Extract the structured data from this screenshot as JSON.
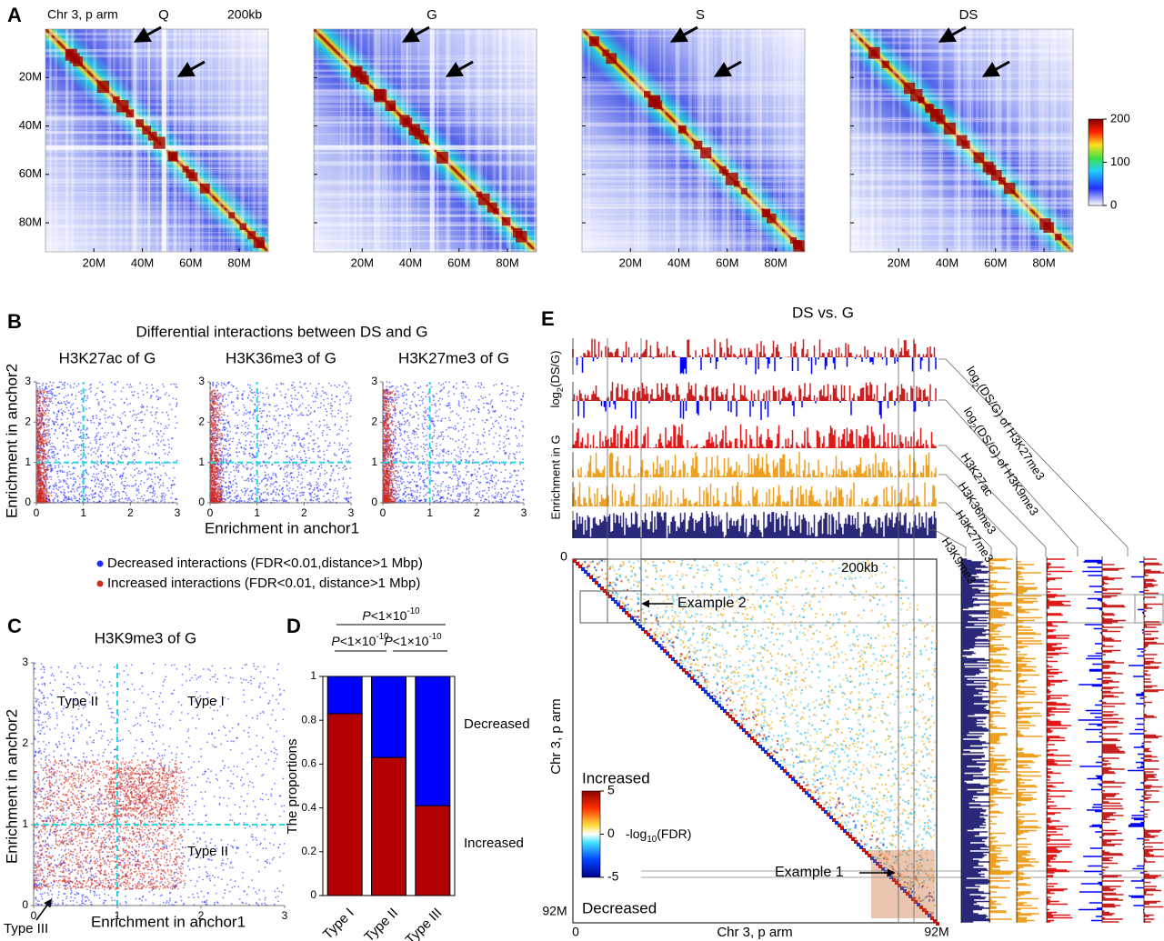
{
  "panel_labels": [
    "A",
    "B",
    "C",
    "D",
    "E"
  ],
  "panel_a": {
    "chrom_label": "Chr 3, p arm",
    "resolution": "200kb",
    "maps": [
      "Q",
      "G",
      "S",
      "DS"
    ],
    "axis_lim": [
      0,
      92
    ],
    "ticks": [
      {
        "value": 20,
        "label": "20M"
      },
      {
        "value": 40,
        "label": "40M"
      },
      {
        "value": 60,
        "label": "60M"
      },
      {
        "value": 80,
        "label": "80M"
      }
    ],
    "colorbar": {
      "lim": [
        0,
        200
      ],
      "ticks": [
        0,
        100,
        200
      ]
    }
  },
  "panel_b": {
    "title": "Differential interactions between DS and G",
    "plots": [
      "H3K27ac of G",
      "H3K36me3 of G",
      "H3K27me3 of G"
    ],
    "xlabel": "Enrichment in anchor1",
    "ylabel": "Enrichment in anchor2",
    "lim": [
      0,
      3
    ],
    "ticks": [
      0,
      1,
      2,
      3
    ],
    "threshold": 1,
    "legend": [
      {
        "name": "Decreased interactions (FDR<0.01,distance>1 Mbp)",
        "color": "#1f2bff"
      },
      {
        "name": "Increased interactions (FDR<0.01, distance>1 Mbp)",
        "color": "#d42a1e"
      }
    ]
  },
  "panel_c": {
    "title": "H3K9me3 of G",
    "xlabel": "Enrichment in anchor1",
    "ylabel": "Enrichment in anchor2",
    "lim": [
      0,
      3
    ],
    "ticks": [
      0,
      1,
      2,
      3
    ],
    "threshold": 1,
    "region_labels": [
      "Type II",
      "Type I",
      "Type II",
      "Type III"
    ]
  },
  "panel_d": {
    "ylabel": "The proportions",
    "categories": [
      "Type I",
      "Type II",
      "Type III"
    ],
    "series": [
      {
        "name": "Increased",
        "color": "#b30000",
        "values": [
          0.83,
          0.63,
          0.41
        ]
      },
      {
        "name": "Decreased",
        "color": "#0000ff",
        "values": [
          0.17,
          0.37,
          0.59
        ]
      }
    ],
    "ylim": [
      0,
      1
    ],
    "yticks": [
      0,
      0.2,
      0.4,
      0.6,
      0.8,
      1
    ],
    "p_values": [
      {
        "italic": "P",
        "text": "<1×10",
        "sup": "-10"
      },
      {
        "italic": "P",
        "text": "<1×10",
        "sup": "-10"
      },
      {
        "italic": "P",
        "text": "<1×10",
        "sup": "-10"
      }
    ]
  },
  "panel_e": {
    "title": "DS vs. G",
    "ratio_axis_label": {
      "text": "log",
      "sub": "2",
      "rest": "(DS/G)"
    },
    "enrichment_axis_label": "Enrichment in G",
    "tracks": [
      {
        "text": "log",
        "sub": "2",
        "rest": "(DS/G) of H3K27me3"
      },
      {
        "text": "log",
        "sub": "2",
        "rest": "(DS/G) of H3K9me3"
      }
    ],
    "marks": [
      "H3K27ac",
      "H3K36me3",
      "H3K27me3",
      "H3K9me3"
    ],
    "resolution": "200kb",
    "xlabel": "Chr 3, p arm",
    "ylabel": "Chr 3, p arm",
    "x_start": "0",
    "x_end": "92M",
    "y_start": "0",
    "y_end": "92M",
    "examples": [
      "Example 1",
      "Example 2"
    ],
    "increased": "Increased",
    "decreased": "Decreased",
    "colorbar": {
      "label": {
        "text": "-log",
        "sub": "10",
        "rest": "(FDR)"
      },
      "lim": [
        -5,
        5
      ],
      "ticks": [
        -5,
        0,
        5
      ]
    }
  }
}
